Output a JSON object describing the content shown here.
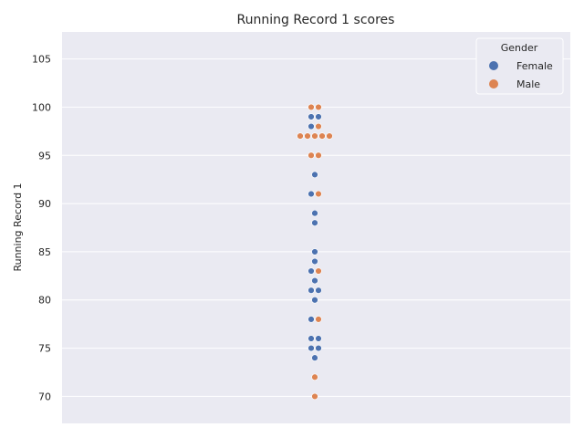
{
  "chart_data": {
    "type": "scatter",
    "subtype": "swarm",
    "title": "Running Record 1 scores",
    "xlabel": "",
    "ylabel": "Running Record 1",
    "ylim": [
      67.2,
      107.8
    ],
    "yticks": [
      70,
      75,
      80,
      85,
      90,
      95,
      100,
      105
    ],
    "grid": true,
    "legend": {
      "title": "Gender",
      "position": "top-right"
    },
    "series": [
      {
        "name": "Female",
        "color": "#4c72b0",
        "values": [
          99,
          99,
          98,
          93,
          91,
          89,
          88,
          85,
          84,
          83,
          82,
          81,
          81,
          80,
          78,
          76,
          76,
          75,
          75,
          74
        ]
      },
      {
        "name": "Male",
        "color": "#dd8452",
        "values": [
          100,
          100,
          98,
          97,
          97,
          97,
          97,
          97,
          95,
          95,
          91,
          83,
          78,
          72,
          70
        ]
      }
    ]
  }
}
